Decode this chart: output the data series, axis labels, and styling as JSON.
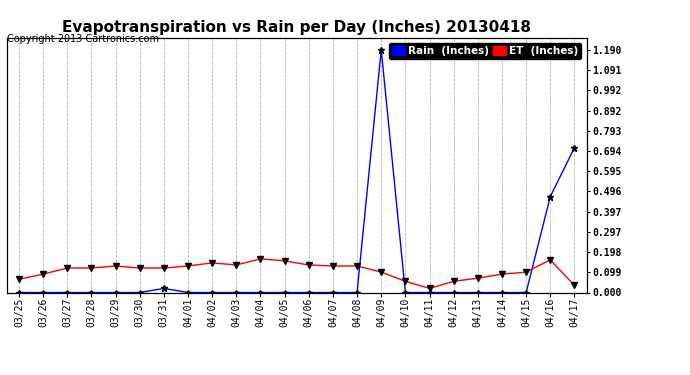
{
  "title": "Evapotranspiration vs Rain per Day (Inches) 20130418",
  "copyright": "Copyright 2013 Cartronics.com",
  "x_labels": [
    "03/25",
    "03/26",
    "03/27",
    "03/28",
    "03/29",
    "03/30",
    "03/31",
    "04/01",
    "04/02",
    "04/03",
    "04/04",
    "04/05",
    "04/06",
    "04/07",
    "04/08",
    "04/09",
    "04/10",
    "04/11",
    "04/12",
    "04/13",
    "04/14",
    "04/15",
    "04/16",
    "04/17"
  ],
  "rain_data": [
    0.0,
    0.0,
    0.0,
    0.0,
    0.0,
    0.0,
    0.02,
    0.0,
    0.0,
    0.0,
    0.0,
    0.0,
    0.0,
    0.0,
    0.0,
    1.19,
    0.0,
    0.0,
    0.0,
    0.0,
    0.0,
    0.0,
    0.47,
    0.71
  ],
  "et_data": [
    0.065,
    0.09,
    0.12,
    0.12,
    0.13,
    0.12,
    0.12,
    0.13,
    0.145,
    0.135,
    0.165,
    0.155,
    0.135,
    0.13,
    0.13,
    0.1,
    0.055,
    0.02,
    0.055,
    0.07,
    0.09,
    0.1,
    0.16,
    0.035
  ],
  "rain_color": "#0000ff",
  "et_color": "#ff0000",
  "bg_color": "#ffffff",
  "grid_color": "#b0b0b0",
  "y_right_ticks": [
    0.0,
    0.099,
    0.198,
    0.297,
    0.397,
    0.496,
    0.595,
    0.694,
    0.793,
    0.892,
    0.992,
    1.091,
    1.19
  ],
  "ylim": [
    0.0,
    1.25
  ],
  "legend_rain_label": "Rain  (Inches)",
  "legend_et_label": "ET  (Inches)",
  "legend_rain_bg": "#0000ff",
  "legend_et_bg": "#ff0000",
  "title_fontsize": 11,
  "copyright_fontsize": 7,
  "axis_fontsize": 7,
  "legend_fontsize": 7.5
}
